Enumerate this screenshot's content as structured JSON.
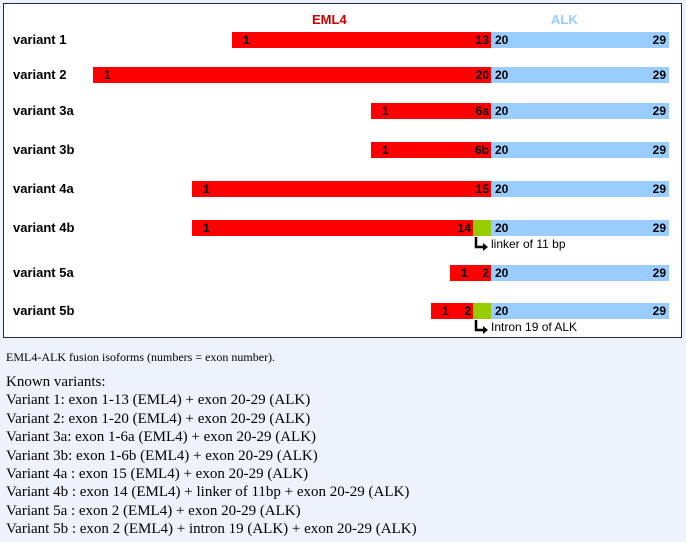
{
  "colors": {
    "eml4": "#ff0000",
    "alk": "#99ccff",
    "insert": "#99cc00",
    "eml4_title": "#cc0000",
    "alk_title": "#99ccff"
  },
  "diagram": {
    "eml4_title": "EML4",
    "alk_title": "ALK",
    "variants": [
      {
        "label": "variant 1",
        "eml4_start": "1",
        "eml4_end": "13",
        "alk_start": "20",
        "alk_end": "29"
      },
      {
        "label": "variant 2",
        "eml4_start": "1",
        "eml4_end": "20",
        "alk_start": "20",
        "alk_end": "29"
      },
      {
        "label": "variant 3a",
        "eml4_start": "1",
        "eml4_end": "6a",
        "alk_start": "20",
        "alk_end": "29"
      },
      {
        "label": "variant 3b",
        "eml4_start": "1",
        "eml4_end": "6b",
        "alk_start": "20",
        "alk_end": "29"
      },
      {
        "label": "variant 4a",
        "eml4_start": "1",
        "eml4_end": "15",
        "alk_start": "20",
        "alk_end": "29"
      },
      {
        "label": "variant 4b",
        "eml4_start": "1",
        "eml4_end": "14",
        "alk_start": "20",
        "alk_end": "29",
        "insert_note": "linker of 11 bp"
      },
      {
        "label": "variant 5a",
        "eml4_start": "1",
        "eml4_end": "2",
        "alk_start": "20",
        "alk_end": "29"
      },
      {
        "label": "variant 5b",
        "eml4_start": "1",
        "eml4_end": "2",
        "alk_start": "20",
        "alk_end": "29",
        "insert_note": "Intron 19 of ALK"
      }
    ]
  },
  "caption": "EML4-ALK fusion isoforms (numbers = exon number).",
  "known": {
    "heading": "Known variants:",
    "lines": [
      "Variant 1: exon 1-13 (EML4) + exon 20-29 (ALK)",
      "Variant 2: exon 1-20 (EML4) + exon 20-29 (ALK)",
      "Variant 3a: exon 1-6a (EML4) + exon 20-29 (ALK)",
      "Variant 3b: exon 1-6b (EML4) + exon 20-29 (ALK)",
      "Variant 4a : exon 15 (EML4) + exon 20-29 (ALK)",
      "Variant 4b : exon 14 (EML4) + linker of 11bp + exon 20-29 (ALK)",
      "Variant 5a : exon 2 (EML4) + exon 20-29 (ALK)",
      "Variant 5b : exon 2 (EML4) + intron 19 (ALK) + exon 20-29 (ALK)"
    ]
  }
}
